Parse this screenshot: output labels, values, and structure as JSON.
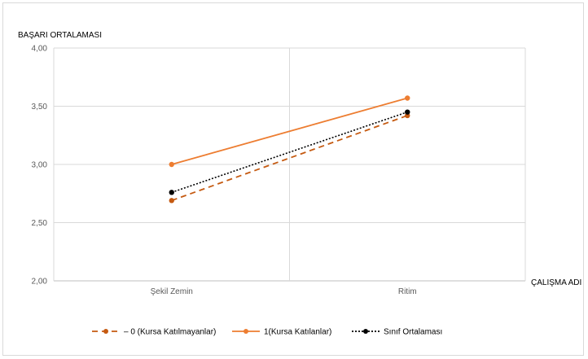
{
  "chart_data": {
    "type": "line",
    "ylabel": "BAŞARI ORTALAMASI",
    "xlabel": "ÇALIŞMA ADI",
    "categories": [
      "Şekil Zemin",
      "Ritim"
    ],
    "ylim": [
      2.0,
      4.0
    ],
    "yticks": [
      2.0,
      2.5,
      3.0,
      3.5,
      4.0
    ],
    "ytick_labels": [
      "2,00",
      "2,50",
      "3,00",
      "3,50",
      "4,00"
    ],
    "grid": true,
    "legend_position": "bottom",
    "series": [
      {
        "name": "0 (Kursa Katılmayanlar)",
        "values": [
          2.69,
          3.42
        ],
        "color": "#c55a11",
        "style": "dashed"
      },
      {
        "name": "1(Kursa Katılanlar)",
        "values": [
          3.0,
          3.57
        ],
        "color": "#ed7d31",
        "style": "solid"
      },
      {
        "name": "Sınıf Ortalaması",
        "values": [
          2.76,
          3.45
        ],
        "color": "#000000",
        "style": "dotted"
      }
    ]
  }
}
